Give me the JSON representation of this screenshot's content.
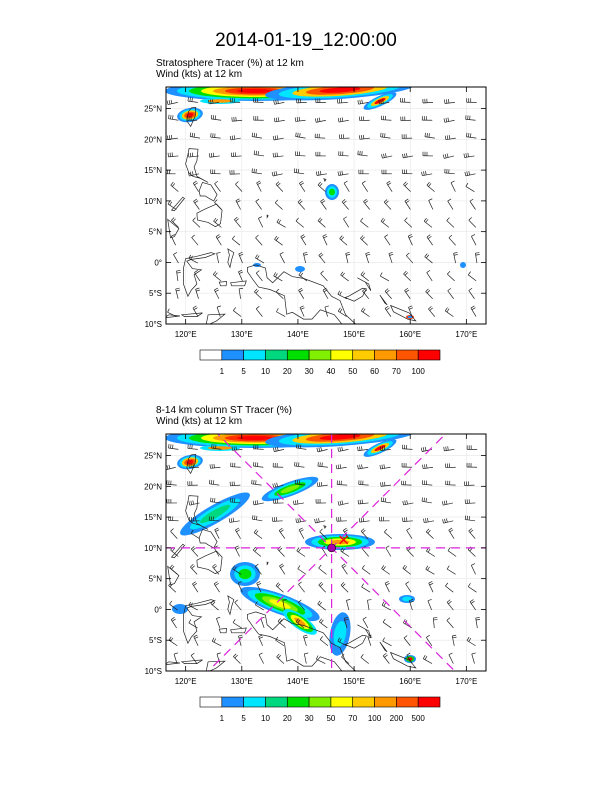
{
  "title": "2014-01-19_12:00:00",
  "panels": [
    {
      "label_line1": "Stratosphere Tracer   (%)     at   12 km",
      "label_line2": "Wind   (kts)     at   12 km",
      "lat_ticks": [
        "25°N",
        "20°N",
        "15°N",
        "10°N",
        "5°N",
        "0°",
        "5°S",
        "10°S"
      ],
      "lon_ticks": [
        "120°E",
        "130°E",
        "140°E",
        "150°E",
        "160°E",
        "170°E"
      ],
      "colorbar_labels": [
        "1",
        "5",
        "10",
        "20",
        "30",
        "40",
        "50",
        "60",
        "70",
        "100"
      ],
      "colorbar_colors": [
        "#ffffff",
        "#1e90ff",
        "#00e5ff",
        "#00d880",
        "#00e000",
        "#80f000",
        "#ffff00",
        "#ffcc00",
        "#ff9900",
        "#ff5500",
        "#ff0000"
      ]
    },
    {
      "label_line1": "8-14 km column ST Tracer   (%)",
      "label_line2": "Wind   (kts)     at   12 km",
      "lat_ticks": [
        "25°N",
        "20°N",
        "15°N",
        "10°N",
        "5°N",
        "0°",
        "5°S",
        "10°S"
      ],
      "lon_ticks": [
        "120°E",
        "130°E",
        "140°E",
        "150°E",
        "160°E",
        "170°E"
      ],
      "colorbar_labels": [
        "1",
        "5",
        "10",
        "20",
        "30",
        "50",
        "70",
        "100",
        "200",
        "500"
      ],
      "colorbar_colors": [
        "#ffffff",
        "#1e90ff",
        "#00e5ff",
        "#00d880",
        "#00e000",
        "#80f000",
        "#ffff00",
        "#ffcc00",
        "#ff9900",
        "#ff5500",
        "#ff0000"
      ]
    }
  ]
}
